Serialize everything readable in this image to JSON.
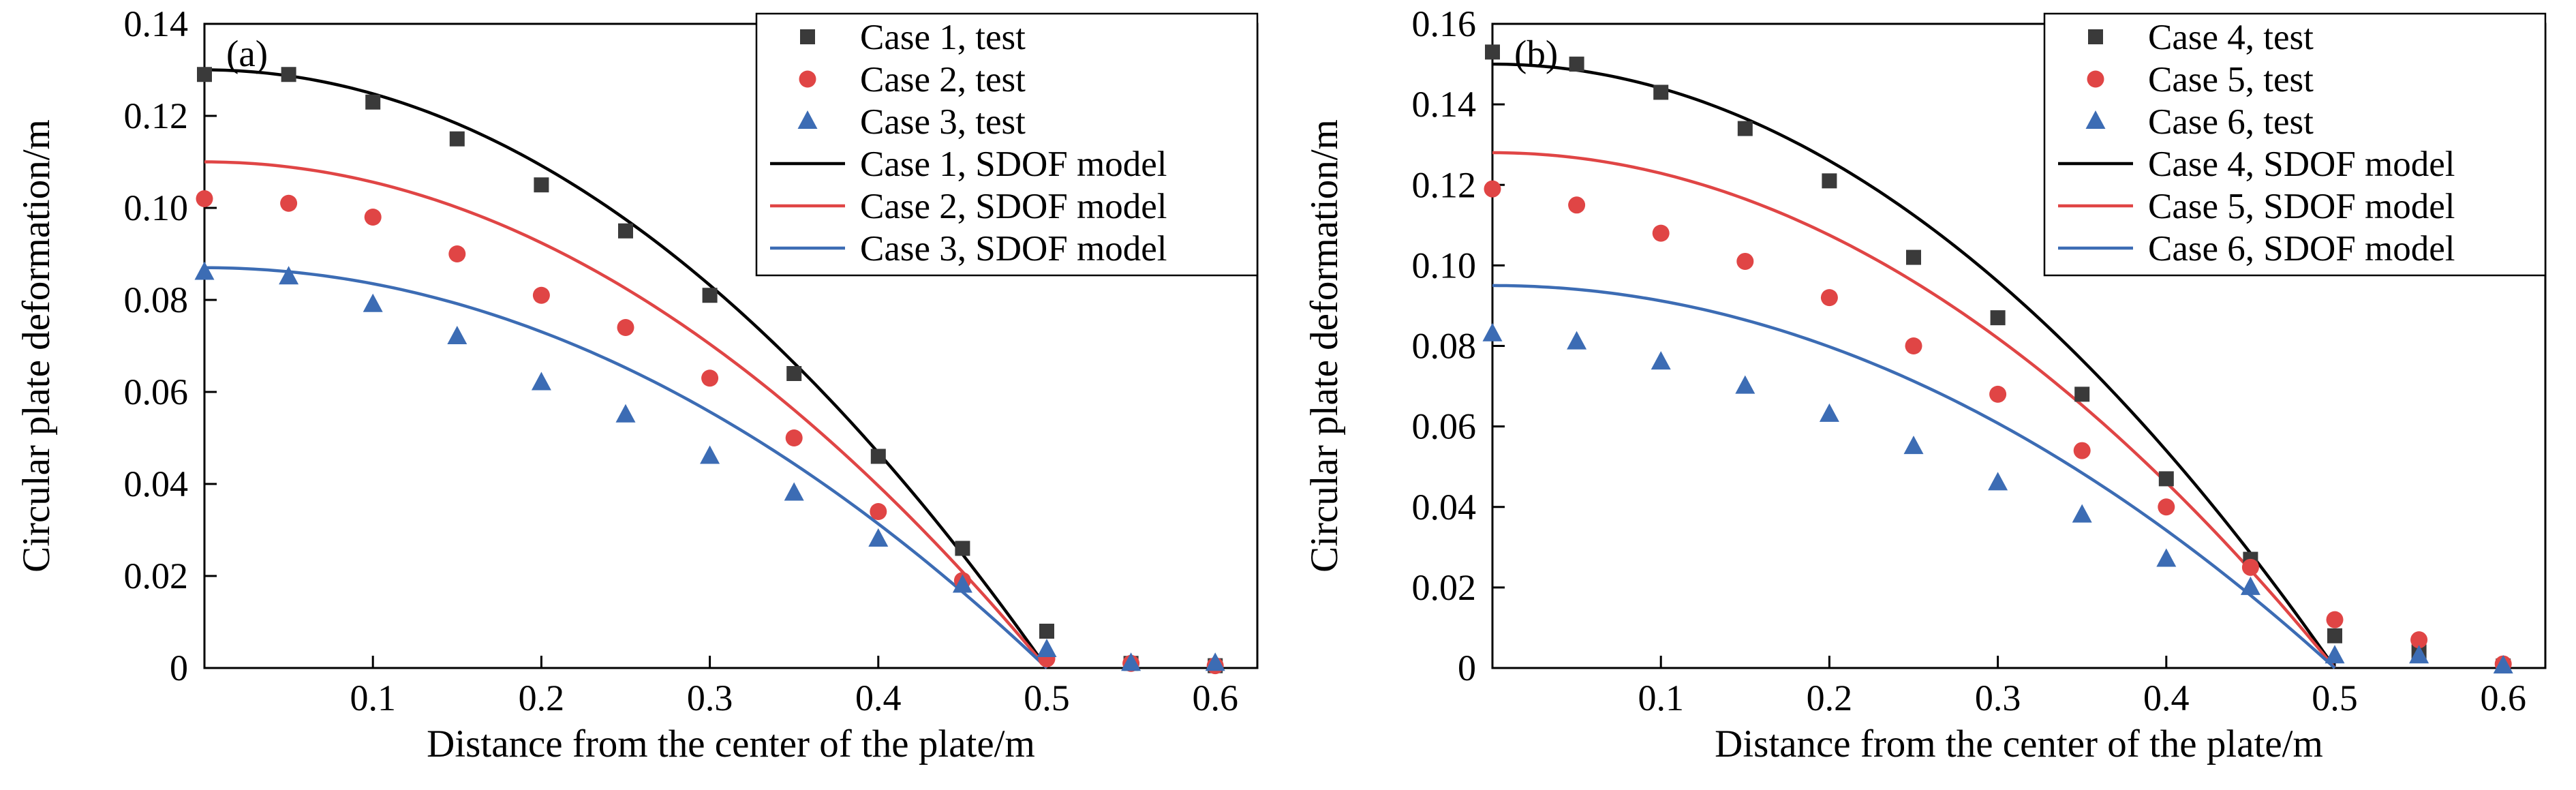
{
  "figure": {
    "background": "#ffffff",
    "axis_color": "#000000"
  },
  "chart_data": [
    {
      "type": "scatter",
      "panel_label": "(a)",
      "xlabel": "Distance from the center of the plate/m",
      "ylabel": "Circular plate deformation/m",
      "xlim": [
        0,
        0.625
      ],
      "ylim": [
        0,
        0.14
      ],
      "xticks": [
        "0.1",
        "0.2",
        "0.3",
        "0.4",
        "0.5",
        "0.6"
      ],
      "yticks": [
        "0",
        "0.02",
        "0.04",
        "0.06",
        "0.08",
        "0.10",
        "0.12",
        "0.14"
      ],
      "grid": false,
      "legend_position": "top-right",
      "x": [
        0,
        0.05,
        0.1,
        0.15,
        0.2,
        0.25,
        0.3,
        0.35,
        0.4,
        0.45,
        0.5,
        0.55,
        0.6
      ],
      "test_series": [
        {
          "name": "Case 1, test",
          "marker": "square",
          "color": "#3a3a3a",
          "values": [
            0.129,
            0.129,
            0.123,
            0.115,
            0.105,
            0.095,
            0.081,
            0.064,
            0.046,
            0.026,
            0.008,
            0.001,
            0.0005
          ]
        },
        {
          "name": "Case 2, test",
          "marker": "circle",
          "color": "#e04545",
          "values": [
            0.102,
            0.101,
            0.098,
            0.09,
            0.081,
            0.074,
            0.063,
            0.05,
            0.034,
            0.019,
            0.002,
            0.001,
            0.0005
          ]
        },
        {
          "name": "Case 3, test",
          "marker": "triangle",
          "color": "#3c6cb4",
          "values": [
            0.086,
            0.085,
            0.079,
            0.072,
            0.062,
            0.055,
            0.046,
            0.038,
            0.028,
            0.018,
            0.004,
            0.001,
            0.001
          ]
        }
      ],
      "model_series": [
        {
          "name": "Case 1, SDOF model",
          "color": "#000000",
          "w0": 0.13,
          "radius": 0.5,
          "shape": "parabola"
        },
        {
          "name": "Case 2, SDOF model",
          "color": "#e04545",
          "w0": 0.11,
          "radius": 0.5,
          "shape": "parabola"
        },
        {
          "name": "Case 3, SDOF model",
          "color": "#3c6cb4",
          "w0": 0.087,
          "radius": 0.5,
          "shape": "parabola"
        }
      ]
    },
    {
      "type": "scatter",
      "panel_label": "(b)",
      "xlabel": "Distance from the center of the plate/m",
      "ylabel": "Circular plate deformation/m",
      "xlim": [
        0,
        0.625
      ],
      "ylim": [
        0,
        0.16
      ],
      "xticks": [
        "0.1",
        "0.2",
        "0.3",
        "0.4",
        "0.5",
        "0.6"
      ],
      "yticks": [
        "0",
        "0.02",
        "0.04",
        "0.06",
        "0.08",
        "0.10",
        "0.12",
        "0.14",
        "0.16"
      ],
      "grid": false,
      "legend_position": "top-right",
      "x": [
        0,
        0.05,
        0.1,
        0.15,
        0.2,
        0.25,
        0.3,
        0.35,
        0.4,
        0.45,
        0.5,
        0.55,
        0.6
      ],
      "test_series": [
        {
          "name": "Case 4, test",
          "marker": "square",
          "color": "#3a3a3a",
          "values": [
            0.153,
            0.15,
            0.143,
            0.134,
            0.121,
            0.102,
            0.087,
            0.068,
            0.047,
            0.027,
            0.008,
            0.004,
            0.0005
          ]
        },
        {
          "name": "Case 5, test",
          "marker": "circle",
          "color": "#e04545",
          "values": [
            0.119,
            0.115,
            0.108,
            0.101,
            0.092,
            0.08,
            0.068,
            0.054,
            0.04,
            0.025,
            0.012,
            0.007,
            0.001
          ]
        },
        {
          "name": "Case 6, test",
          "marker": "triangle",
          "color": "#3c6cb4",
          "values": [
            0.083,
            0.081,
            0.076,
            0.07,
            0.063,
            0.055,
            0.046,
            0.038,
            0.027,
            0.02,
            0.003,
            0.003,
            0.0005
          ]
        }
      ],
      "model_series": [
        {
          "name": "Case 4, SDOF model",
          "color": "#000000",
          "w0": 0.15,
          "radius": 0.5,
          "shape": "parabola"
        },
        {
          "name": "Case 5, SDOF model",
          "color": "#e04545",
          "w0": 0.128,
          "radius": 0.5,
          "shape": "parabola"
        },
        {
          "name": "Case 6, SDOF model",
          "color": "#3c6cb4",
          "w0": 0.095,
          "radius": 0.5,
          "shape": "parabola"
        }
      ]
    }
  ]
}
